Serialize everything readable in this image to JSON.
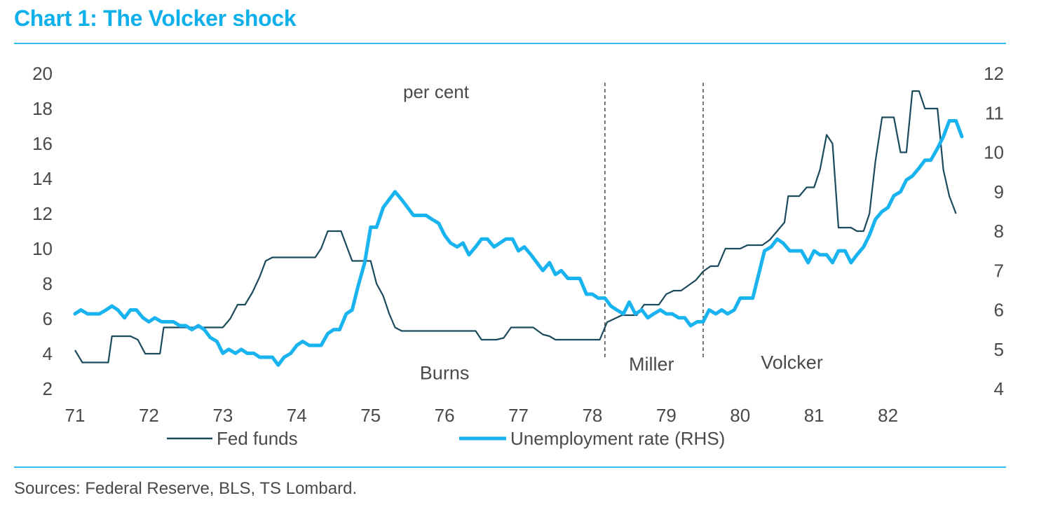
{
  "title": "Chart 1: The Volcker shock",
  "source": "Sources: Federal Reserve, BLS, TS Lombard.",
  "colors": {
    "accent": "#0fb0ea",
    "fed_funds": "#1b4a5c",
    "unemployment": "#19b4ef",
    "text": "#4a4a4a",
    "divider": "#555555"
  },
  "chart_data": {
    "type": "line",
    "unit_label": "per cent",
    "xlim": [
      71,
      83
    ],
    "x_ticks": [
      71,
      72,
      73,
      74,
      75,
      76,
      77,
      78,
      79,
      80,
      81,
      82
    ],
    "x_tick_labels": [
      "71",
      "72",
      "73",
      "74",
      "75",
      "76",
      "77",
      "78",
      "79",
      "80",
      "81",
      "82"
    ],
    "ylim_left": [
      2,
      20
    ],
    "y_ticks_left": [
      2,
      4,
      6,
      8,
      10,
      12,
      14,
      16,
      18,
      20
    ],
    "y_tick_labels_left": [
      "2",
      "4",
      "6",
      "8",
      "10",
      "12",
      "14",
      "16",
      "18",
      "20"
    ],
    "ylim_right": [
      4,
      12
    ],
    "y_ticks_right": [
      4,
      5,
      6,
      7,
      8,
      9,
      10,
      11,
      12
    ],
    "y_tick_labels_right": [
      "4",
      "5",
      "6",
      "7",
      "8",
      "9",
      "10",
      "11",
      "12"
    ],
    "dividers": [
      78.17,
      79.5
    ],
    "era_labels": [
      {
        "text": "Burns",
        "x": 76.0,
        "y": 2.9
      },
      {
        "text": "Miller",
        "x": 78.8,
        "y": 3.4
      },
      {
        "text": "Volcker",
        "x": 80.7,
        "y": 3.5
      }
    ],
    "series": [
      {
        "name": "Fed funds",
        "axis": "left",
        "points": [
          [
            71.0,
            4.2
          ],
          [
            71.1,
            3.5
          ],
          [
            71.4,
            3.5
          ],
          [
            71.45,
            3.5
          ],
          [
            71.5,
            5.0
          ],
          [
            71.75,
            5.0
          ],
          [
            71.85,
            4.8
          ],
          [
            71.95,
            4.0
          ],
          [
            72.1,
            4.0
          ],
          [
            72.15,
            4.0
          ],
          [
            72.2,
            5.5
          ],
          [
            72.5,
            5.5
          ],
          [
            72.8,
            5.5
          ],
          [
            72.9,
            5.5
          ],
          [
            73.0,
            5.5
          ],
          [
            73.1,
            6.0
          ],
          [
            73.2,
            6.8
          ],
          [
            73.3,
            6.8
          ],
          [
            73.4,
            7.5
          ],
          [
            73.5,
            8.4
          ],
          [
            73.58,
            9.3
          ],
          [
            73.67,
            9.5
          ],
          [
            73.8,
            9.5
          ],
          [
            74.0,
            9.5
          ],
          [
            74.15,
            9.5
          ],
          [
            74.25,
            9.5
          ],
          [
            74.33,
            10.0
          ],
          [
            74.42,
            11.0
          ],
          [
            74.6,
            11.0
          ],
          [
            74.67,
            10.2
          ],
          [
            74.75,
            9.3
          ],
          [
            75.0,
            9.3
          ],
          [
            75.08,
            8.0
          ],
          [
            75.17,
            7.3
          ],
          [
            75.25,
            6.3
          ],
          [
            75.33,
            5.5
          ],
          [
            75.42,
            5.3
          ],
          [
            75.6,
            5.3
          ],
          [
            76.0,
            5.3
          ],
          [
            76.42,
            5.3
          ],
          [
            76.5,
            4.8
          ],
          [
            76.7,
            4.8
          ],
          [
            76.8,
            4.9
          ],
          [
            76.9,
            5.5
          ],
          [
            77.0,
            5.5
          ],
          [
            77.2,
            5.5
          ],
          [
            77.33,
            5.1
          ],
          [
            77.42,
            5.0
          ],
          [
            77.5,
            4.8
          ],
          [
            77.9,
            4.8
          ],
          [
            78.0,
            4.8
          ],
          [
            78.1,
            4.8
          ],
          [
            78.2,
            5.8
          ],
          [
            78.3,
            6.0
          ],
          [
            78.4,
            6.2
          ],
          [
            78.5,
            6.2
          ],
          [
            78.6,
            6.2
          ],
          [
            78.7,
            6.8
          ],
          [
            78.8,
            6.8
          ],
          [
            78.9,
            6.8
          ],
          [
            79.0,
            7.4
          ],
          [
            79.1,
            7.6
          ],
          [
            79.2,
            7.6
          ],
          [
            79.3,
            7.9
          ],
          [
            79.4,
            8.2
          ],
          [
            79.5,
            8.7
          ],
          [
            79.6,
            9.0
          ],
          [
            79.7,
            9.0
          ],
          [
            79.8,
            10.0
          ],
          [
            79.9,
            10.0
          ],
          [
            80.0,
            10.0
          ],
          [
            80.1,
            10.2
          ],
          [
            80.2,
            10.2
          ],
          [
            80.3,
            10.2
          ],
          [
            80.4,
            10.5
          ],
          [
            80.5,
            11.0
          ],
          [
            80.6,
            11.5
          ],
          [
            80.65,
            13.0
          ],
          [
            80.8,
            13.0
          ],
          [
            80.9,
            13.5
          ],
          [
            81.0,
            13.5
          ],
          [
            81.08,
            14.5
          ],
          [
            81.17,
            16.5
          ],
          [
            81.25,
            16.0
          ],
          [
            81.33,
            11.2
          ],
          [
            81.5,
            11.2
          ],
          [
            81.58,
            11.0
          ],
          [
            81.67,
            11.0
          ],
          [
            81.75,
            12.0
          ],
          [
            81.83,
            15.0
          ],
          [
            81.92,
            17.5
          ],
          [
            82.0,
            17.5
          ],
          [
            82.08,
            17.5
          ],
          [
            82.17,
            15.5
          ],
          [
            82.25,
            15.5
          ],
          [
            82.33,
            19.0
          ],
          [
            82.42,
            19.0
          ],
          [
            82.5,
            18.0
          ],
          [
            82.6,
            18.0
          ],
          [
            82.67,
            18.0
          ],
          [
            82.75,
            14.5
          ],
          [
            82.83,
            13.0
          ],
          [
            82.92,
            12.0
          ]
        ]
      },
      {
        "name": "Unemployment rate (RHS)",
        "axis": "right",
        "points": [
          [
            71.0,
            5.9
          ],
          [
            71.08,
            6.0
          ],
          [
            71.17,
            5.9
          ],
          [
            71.25,
            5.9
          ],
          [
            71.33,
            5.9
          ],
          [
            71.42,
            6.0
          ],
          [
            71.5,
            6.1
          ],
          [
            71.58,
            6.0
          ],
          [
            71.67,
            5.8
          ],
          [
            71.75,
            6.0
          ],
          [
            71.83,
            6.0
          ],
          [
            71.92,
            5.8
          ],
          [
            72.0,
            5.7
          ],
          [
            72.08,
            5.8
          ],
          [
            72.17,
            5.7
          ],
          [
            72.25,
            5.7
          ],
          [
            72.33,
            5.7
          ],
          [
            72.42,
            5.6
          ],
          [
            72.5,
            5.6
          ],
          [
            72.58,
            5.5
          ],
          [
            72.67,
            5.6
          ],
          [
            72.75,
            5.5
          ],
          [
            72.83,
            5.3
          ],
          [
            72.92,
            5.2
          ],
          [
            73.0,
            4.9
          ],
          [
            73.08,
            5.0
          ],
          [
            73.17,
            4.9
          ],
          [
            73.25,
            5.0
          ],
          [
            73.33,
            4.9
          ],
          [
            73.42,
            4.9
          ],
          [
            73.5,
            4.8
          ],
          [
            73.58,
            4.8
          ],
          [
            73.67,
            4.8
          ],
          [
            73.75,
            4.6
          ],
          [
            73.83,
            4.8
          ],
          [
            73.92,
            4.9
          ],
          [
            74.0,
            5.1
          ],
          [
            74.08,
            5.2
          ],
          [
            74.17,
            5.1
          ],
          [
            74.25,
            5.1
          ],
          [
            74.33,
            5.1
          ],
          [
            74.42,
            5.4
          ],
          [
            74.5,
            5.5
          ],
          [
            74.58,
            5.5
          ],
          [
            74.67,
            5.9
          ],
          [
            74.75,
            6.0
          ],
          [
            74.83,
            6.6
          ],
          [
            74.92,
            7.2
          ],
          [
            75.0,
            8.1
          ],
          [
            75.08,
            8.1
          ],
          [
            75.17,
            8.6
          ],
          [
            75.25,
            8.8
          ],
          [
            75.33,
            9.0
          ],
          [
            75.42,
            8.8
          ],
          [
            75.5,
            8.6
          ],
          [
            75.58,
            8.4
          ],
          [
            75.67,
            8.4
          ],
          [
            75.75,
            8.4
          ],
          [
            75.83,
            8.3
          ],
          [
            75.92,
            8.2
          ],
          [
            76.0,
            7.9
          ],
          [
            76.08,
            7.7
          ],
          [
            76.17,
            7.6
          ],
          [
            76.25,
            7.7
          ],
          [
            76.33,
            7.4
          ],
          [
            76.42,
            7.6
          ],
          [
            76.5,
            7.8
          ],
          [
            76.58,
            7.8
          ],
          [
            76.67,
            7.6
          ],
          [
            76.75,
            7.7
          ],
          [
            76.83,
            7.8
          ],
          [
            76.92,
            7.8
          ],
          [
            77.0,
            7.5
          ],
          [
            77.08,
            7.6
          ],
          [
            77.17,
            7.4
          ],
          [
            77.25,
            7.2
          ],
          [
            77.33,
            7.0
          ],
          [
            77.42,
            7.2
          ],
          [
            77.5,
            6.9
          ],
          [
            77.58,
            7.0
          ],
          [
            77.67,
            6.8
          ],
          [
            77.75,
            6.8
          ],
          [
            77.83,
            6.8
          ],
          [
            77.92,
            6.4
          ],
          [
            78.0,
            6.4
          ],
          [
            78.08,
            6.3
          ],
          [
            78.17,
            6.3
          ],
          [
            78.25,
            6.1
          ],
          [
            78.33,
            6.0
          ],
          [
            78.42,
            5.9
          ],
          [
            78.5,
            6.2
          ],
          [
            78.58,
            5.9
          ],
          [
            78.67,
            6.0
          ],
          [
            78.75,
            5.8
          ],
          [
            78.83,
            5.9
          ],
          [
            78.92,
            6.0
          ],
          [
            79.0,
            5.9
          ],
          [
            79.08,
            5.9
          ],
          [
            79.17,
            5.8
          ],
          [
            79.25,
            5.8
          ],
          [
            79.33,
            5.6
          ],
          [
            79.42,
            5.7
          ],
          [
            79.5,
            5.7
          ],
          [
            79.58,
            6.0
          ],
          [
            79.67,
            5.9
          ],
          [
            79.75,
            6.0
          ],
          [
            79.83,
            5.9
          ],
          [
            79.92,
            6.0
          ],
          [
            80.0,
            6.3
          ],
          [
            80.08,
            6.3
          ],
          [
            80.17,
            6.3
          ],
          [
            80.25,
            6.9
          ],
          [
            80.33,
            7.5
          ],
          [
            80.42,
            7.6
          ],
          [
            80.5,
            7.8
          ],
          [
            80.58,
            7.7
          ],
          [
            80.67,
            7.5
          ],
          [
            80.75,
            7.5
          ],
          [
            80.83,
            7.5
          ],
          [
            80.92,
            7.2
          ],
          [
            81.0,
            7.5
          ],
          [
            81.08,
            7.4
          ],
          [
            81.17,
            7.4
          ],
          [
            81.25,
            7.2
          ],
          [
            81.33,
            7.5
          ],
          [
            81.42,
            7.5
          ],
          [
            81.5,
            7.2
          ],
          [
            81.58,
            7.4
          ],
          [
            81.67,
            7.6
          ],
          [
            81.75,
            7.9
          ],
          [
            81.83,
            8.3
          ],
          [
            81.92,
            8.5
          ],
          [
            82.0,
            8.6
          ],
          [
            82.08,
            8.9
          ],
          [
            82.17,
            9.0
          ],
          [
            82.25,
            9.3
          ],
          [
            82.33,
            9.4
          ],
          [
            82.42,
            9.6
          ],
          [
            82.5,
            9.8
          ],
          [
            82.58,
            9.8
          ],
          [
            82.67,
            10.1
          ],
          [
            82.75,
            10.4
          ],
          [
            82.83,
            10.8
          ],
          [
            82.92,
            10.8
          ],
          [
            83.0,
            10.4
          ]
        ]
      }
    ],
    "legend_placement": "bottom"
  }
}
